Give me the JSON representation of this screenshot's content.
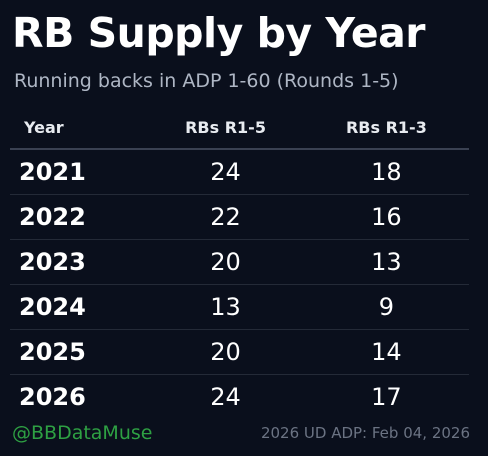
{
  "chart_data": {
    "type": "table",
    "title": "RB Supply by Year",
    "subtitle": "Running backs in ADP 1-60 (Rounds 1-5)",
    "columns": [
      "Year",
      "RBs R1-5",
      "RBs R1-3"
    ],
    "rows": [
      [
        "2021",
        "24",
        "18"
      ],
      [
        "2022",
        "22",
        "16"
      ],
      [
        "2023",
        "20",
        "13"
      ],
      [
        "2024",
        "13",
        "9"
      ],
      [
        "2025",
        "20",
        "14"
      ],
      [
        "2026",
        "24",
        "17"
      ]
    ]
  },
  "footer": {
    "handle": "@BBDataMuse",
    "source": "2026 UD ADP: Feb 04, 2026"
  },
  "colors": {
    "background": "#0a0f1c",
    "text": "#ffffff",
    "subtitle": "#aeb6c4",
    "handle": "#2ea043",
    "source": "#6b7383"
  }
}
